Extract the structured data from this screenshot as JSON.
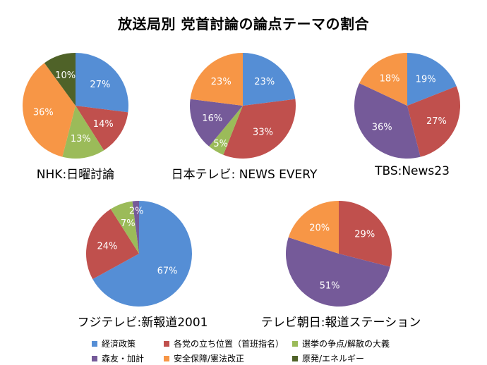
{
  "title": "放送局別 党首討論の論点テーマの割合",
  "colors": {
    "economy": "#558ED5",
    "party_position": "#C0504D",
    "election_issue": "#9BBB59",
    "moritomo": "#755A99",
    "security": "#F79646",
    "nuclear": "#4F6228"
  },
  "legend": [
    {
      "key": "economy",
      "label": "経済政策"
    },
    {
      "key": "party_position",
      "label": "各党の立ち位置（首班指名）"
    },
    {
      "key": "election_issue",
      "label": "選挙の争点/解散の大義"
    },
    {
      "key": "moritomo",
      "label": "森友・加計"
    },
    {
      "key": "security",
      "label": "安全保障/憲法改正"
    },
    {
      "key": "nuclear",
      "label": "原発/エネルギー"
    }
  ],
  "chart_data": [
    {
      "type": "pie",
      "title": "NHK:日曜討論",
      "slices": [
        {
          "key": "economy",
          "value": 27,
          "label": "27%"
        },
        {
          "key": "party_position",
          "value": 14,
          "label": "14%"
        },
        {
          "key": "election_issue",
          "value": 13,
          "label": "13%"
        },
        {
          "key": "security",
          "value": 36,
          "label": "36%"
        },
        {
          "key": "nuclear",
          "value": 10,
          "label": "10%"
        }
      ]
    },
    {
      "type": "pie",
      "title": "日本テレビ: NEWS EVERY",
      "slices": [
        {
          "key": "economy",
          "value": 23,
          "label": "23%"
        },
        {
          "key": "party_position",
          "value": 33,
          "label": "33%"
        },
        {
          "key": "election_issue",
          "value": 5,
          "label": "5%"
        },
        {
          "key": "moritomo",
          "value": 16,
          "label": "16%"
        },
        {
          "key": "security",
          "value": 23,
          "label": "23%"
        }
      ]
    },
    {
      "type": "pie",
      "title": "TBS:News23",
      "slices": [
        {
          "key": "economy",
          "value": 19,
          "label": "19%"
        },
        {
          "key": "party_position",
          "value": 27,
          "label": "27%"
        },
        {
          "key": "moritomo",
          "value": 36,
          "label": "36%"
        },
        {
          "key": "security",
          "value": 18,
          "label": "18%"
        }
      ]
    },
    {
      "type": "pie",
      "title": "フジテレビ:新報道2001",
      "slices": [
        {
          "key": "economy",
          "value": 67,
          "label": "67%"
        },
        {
          "key": "party_position",
          "value": 24,
          "label": "24%"
        },
        {
          "key": "election_issue",
          "value": 7,
          "label": "7%"
        },
        {
          "key": "moritomo",
          "value": 2,
          "label": "2%"
        }
      ]
    },
    {
      "type": "pie",
      "title": "テレビ朝日:報道ステーション",
      "slices": [
        {
          "key": "party_position",
          "value": 29,
          "label": "29%"
        },
        {
          "key": "moritomo",
          "value": 51,
          "label": "51%"
        },
        {
          "key": "security",
          "value": 20,
          "label": "20%"
        }
      ]
    }
  ]
}
